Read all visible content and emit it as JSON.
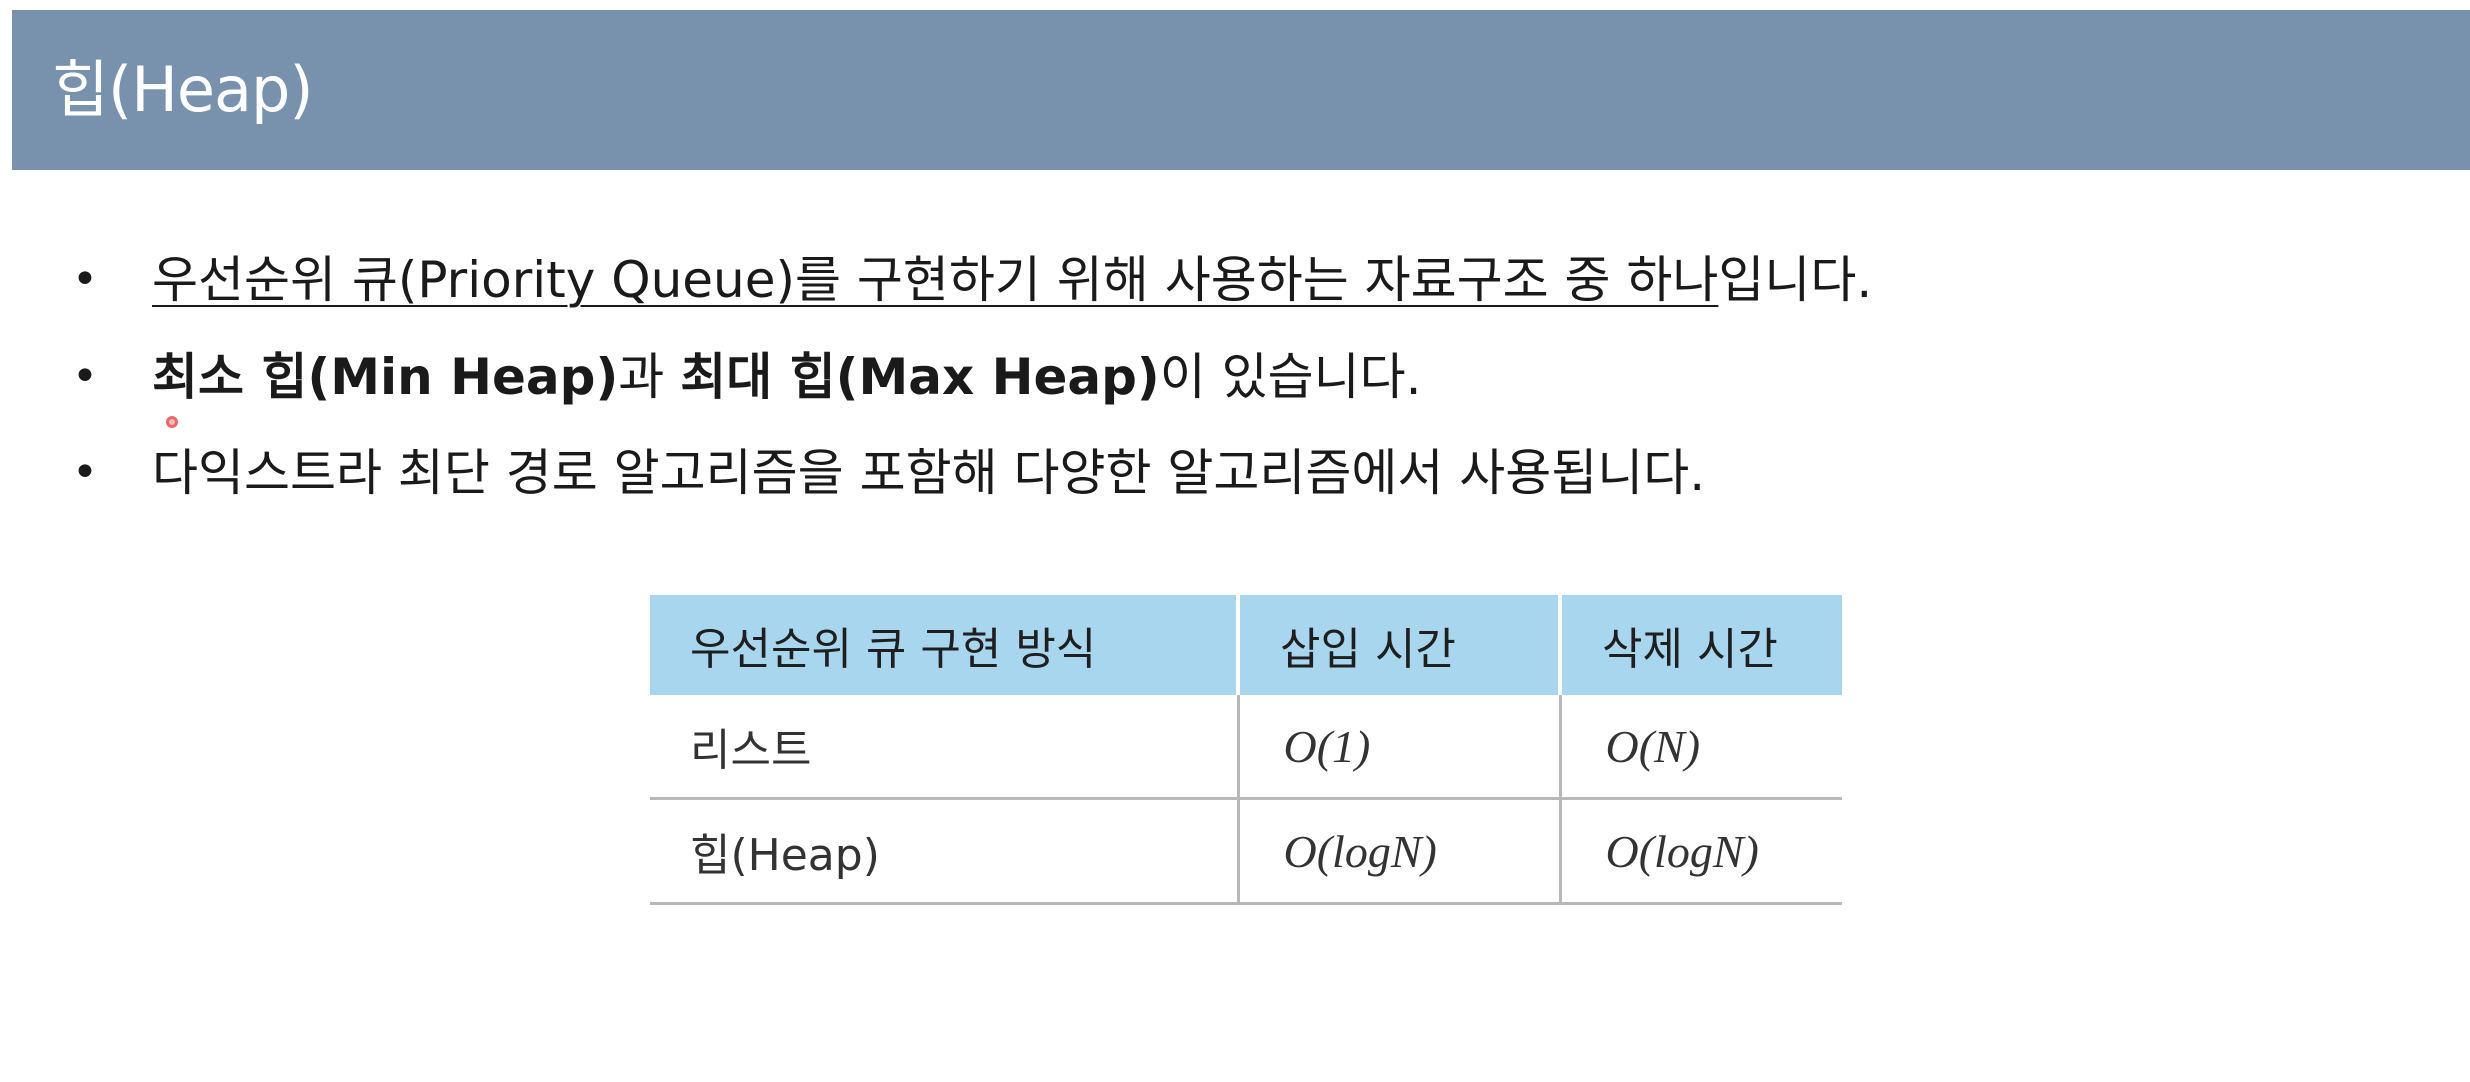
{
  "header": {
    "title": "힙(Heap)"
  },
  "bullets": [
    {
      "marker": "•",
      "underlined_text": "우선순위 큐(Priority Queue)를 구현하기 위해 사용하는 자료구조 중 하나",
      "trailing_text": "입니다."
    },
    {
      "marker": "•",
      "bold_1": "최소 힙(Min Heap)",
      "text_1": "과 ",
      "bold_2": "최대 힙(Max Heap)",
      "text_2": "이 있습니다."
    },
    {
      "marker": "•",
      "text": "다익스트라 최단 경로 알고리즘을 포함해 다양한 알고리즘에서 사용됩니다."
    }
  ],
  "table": {
    "headers": [
      "우선순위 큐 구현 방식",
      "삽입 시간",
      "삭제 시간"
    ],
    "rows": [
      [
        "리스트",
        "O(1)",
        "O(N)"
      ],
      [
        "힙(Heap)",
        "O(logN)",
        "O(logN)"
      ]
    ]
  },
  "colors": {
    "title_bar": "#7892ad",
    "table_header": "#a8d6ee",
    "cursor_indicator": "#e86a6a"
  }
}
